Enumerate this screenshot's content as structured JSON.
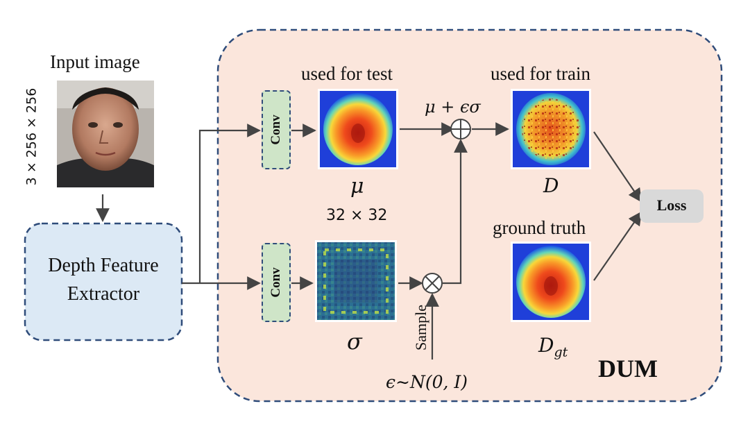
{
  "input": {
    "title": "Input image",
    "dims": "3 × 256 × 256"
  },
  "extractor": {
    "line1": "Depth Feature",
    "line2": "Extractor"
  },
  "conv_top": {
    "label": "Conv"
  },
  "conv_bottom": {
    "label": "Conv"
  },
  "mu": {
    "caption": "used for test",
    "symbol": "μ",
    "size": "32 × 32"
  },
  "sigma": {
    "symbol": "σ"
  },
  "sum": {
    "formula": "μ + ϵσ"
  },
  "d": {
    "caption": "used for train",
    "symbol": "D"
  },
  "gt": {
    "caption": "ground truth",
    "symbol": "D",
    "subscript": "gt"
  },
  "sample": {
    "label": "Sample",
    "distribution": "ϵ∼N(0, I)"
  },
  "loss": {
    "label": "Loss"
  },
  "module": {
    "label": "DUM"
  }
}
